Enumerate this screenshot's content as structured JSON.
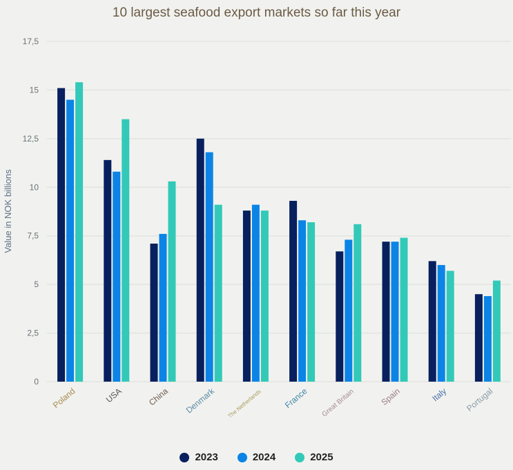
{
  "chart_data": {
    "type": "bar",
    "title": "10 largest seafood export markets so far this year",
    "ylabel": "Value in NOK billions",
    "xlabel": "",
    "ylim": [
      0,
      17.5
    ],
    "yticks": [
      "0",
      "2,5",
      "5",
      "7,5",
      "10",
      "12,5",
      "15",
      "17,5"
    ],
    "grid": true,
    "legend_position": "bottom",
    "categories": [
      "Poland",
      "USA",
      "China",
      "Denmark",
      "The Netherlands",
      "France",
      "Great Britain",
      "Spain",
      "Italy",
      "Portugal"
    ],
    "category_label_colors": [
      "#a88a4e",
      "#555555",
      "#6b5a4a",
      "#5b8aa5",
      "#a89a5e",
      "#3f86a8",
      "#a88a8e",
      "#9c7a86",
      "#4a6fa8",
      "#8a9aaa"
    ],
    "series": [
      {
        "name": "2023",
        "color": "#08205e",
        "values": [
          15.1,
          11.4,
          7.1,
          12.5,
          8.8,
          9.3,
          6.7,
          7.2,
          6.2,
          4.5
        ]
      },
      {
        "name": "2024",
        "color": "#0b84e6",
        "values": [
          14.5,
          10.8,
          7.6,
          11.8,
          9.1,
          8.3,
          7.3,
          7.2,
          6.0,
          4.4
        ]
      },
      {
        "name": "2025",
        "color": "#33c9b8",
        "values": [
          15.4,
          13.5,
          10.3,
          9.1,
          8.8,
          8.2,
          8.1,
          7.4,
          5.7,
          5.2
        ]
      }
    ]
  }
}
